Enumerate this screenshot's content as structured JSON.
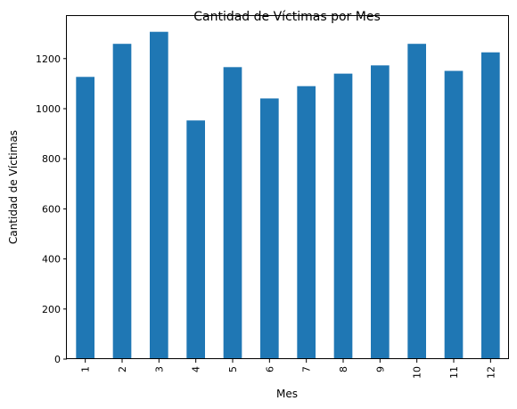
{
  "chart_data": {
    "type": "bar",
    "title": "Cantidad de Víctimas por Mes",
    "xlabel": "Mes",
    "ylabel": "Cantidad de Víctimas",
    "categories": [
      "1",
      "2",
      "3",
      "4",
      "5",
      "6",
      "7",
      "8",
      "9",
      "10",
      "11",
      "12"
    ],
    "values": [
      1127,
      1259,
      1307,
      953,
      1166,
      1041,
      1090,
      1140,
      1173,
      1259,
      1151,
      1225
    ],
    "ylim": [
      0,
      1370
    ],
    "yticks": [
      0,
      200,
      400,
      600,
      800,
      1000,
      1200
    ],
    "grid": false,
    "legend": "none",
    "bar_color": "#1f77b4"
  }
}
